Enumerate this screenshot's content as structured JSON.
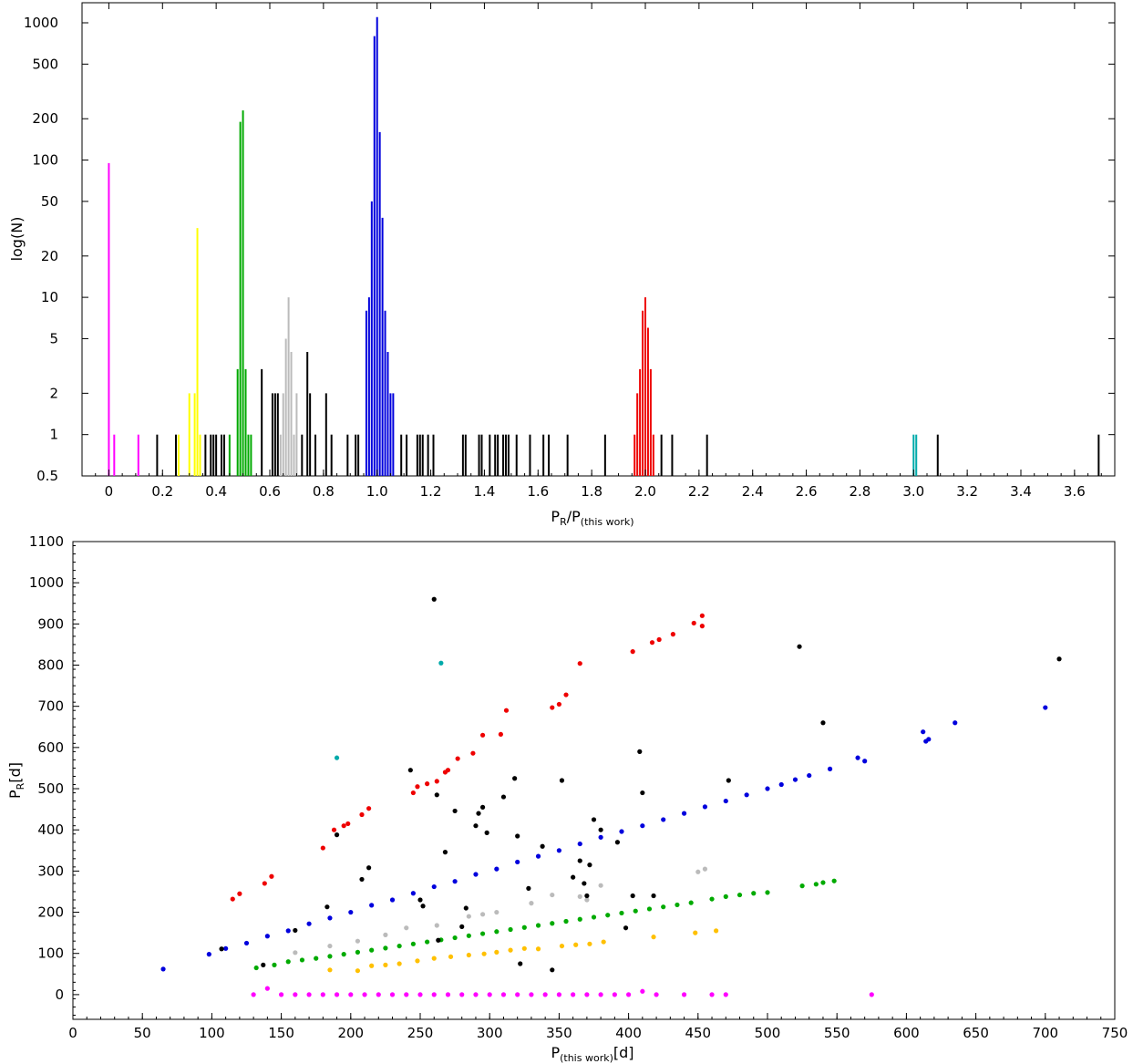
{
  "chart_data": [
    {
      "type": "bar",
      "title": "",
      "xlabel": {
        "main": "P",
        "sub1": "R",
        "mid": "/P",
        "sub2": "(this work)"
      },
      "ylabel": "log(N)",
      "xlim": [
        -0.1,
        3.75
      ],
      "ylim": [
        0.5,
        1400
      ],
      "yscale": "log",
      "xticks": [
        "0",
        "0.2",
        "0.4",
        "0.6",
        "0.8",
        "1.0",
        "1.2",
        "1.4",
        "1.6",
        "1.8",
        "2.0",
        "2.2",
        "2.4",
        "2.6",
        "2.8",
        "3.0",
        "3.2",
        "3.4",
        "3.6"
      ],
      "xtick_values": [
        0,
        0.2,
        0.4,
        0.6,
        0.8,
        1.0,
        1.2,
        1.4,
        1.6,
        1.8,
        2.0,
        2.2,
        2.4,
        2.6,
        2.8,
        3.0,
        3.2,
        3.4,
        3.6
      ],
      "yticks": [
        "0.5",
        "1",
        "2",
        "5",
        "10",
        "20",
        "50",
        "100",
        "200",
        "500",
        "1000"
      ],
      "ytick_values": [
        0.5,
        1,
        2,
        5,
        10,
        20,
        50,
        100,
        200,
        500,
        1000
      ],
      "grid": false,
      "groups": [
        {
          "color": "#ff00ff",
          "bars": [
            [
              0.0,
              95
            ],
            [
              0.02,
              1
            ],
            [
              0.11,
              1
            ]
          ]
        },
        {
          "color": "#000000",
          "bars": [
            [
              0.18,
              1
            ],
            [
              0.25,
              1
            ],
            [
              0.36,
              1
            ],
            [
              0.38,
              1
            ],
            [
              0.39,
              1
            ],
            [
              0.4,
              1
            ],
            [
              0.42,
              1
            ],
            [
              0.43,
              1
            ],
            [
              0.57,
              3
            ],
            [
              0.61,
              2
            ],
            [
              0.62,
              2
            ],
            [
              0.63,
              2
            ],
            [
              0.72,
              1
            ],
            [
              0.74,
              4
            ],
            [
              0.75,
              2
            ],
            [
              0.77,
              1
            ],
            [
              0.81,
              2
            ],
            [
              0.83,
              1
            ],
            [
              0.89,
              1
            ],
            [
              0.92,
              1
            ],
            [
              0.93,
              1
            ],
            [
              1.09,
              1
            ],
            [
              1.11,
              1
            ],
            [
              1.15,
              1
            ],
            [
              1.16,
              1
            ],
            [
              1.17,
              1
            ],
            [
              1.19,
              1
            ],
            [
              1.21,
              1
            ],
            [
              1.32,
              1
            ],
            [
              1.33,
              1
            ],
            [
              1.38,
              1
            ],
            [
              1.39,
              1
            ],
            [
              1.42,
              1
            ],
            [
              1.44,
              1
            ],
            [
              1.45,
              1
            ],
            [
              1.47,
              1
            ],
            [
              1.48,
              1
            ],
            [
              1.49,
              1
            ],
            [
              1.52,
              1
            ],
            [
              1.57,
              1
            ],
            [
              1.62,
              1
            ],
            [
              1.64,
              1
            ],
            [
              1.71,
              1
            ],
            [
              1.85,
              1
            ],
            [
              2.06,
              1
            ],
            [
              2.1,
              1
            ],
            [
              2.23,
              1
            ],
            [
              3.09,
              1
            ],
            [
              3.69,
              1
            ]
          ]
        },
        {
          "color": "#ffff00",
          "bars": [
            [
              0.26,
              1
            ],
            [
              0.3,
              2
            ],
            [
              0.32,
              2
            ],
            [
              0.33,
              32
            ],
            [
              0.34,
              1
            ]
          ]
        },
        {
          "color": "#00aa00",
          "bars": [
            [
              0.45,
              1
            ],
            [
              0.48,
              3
            ],
            [
              0.49,
              190
            ],
            [
              0.5,
              230
            ],
            [
              0.51,
              3
            ],
            [
              0.52,
              1
            ],
            [
              0.53,
              1
            ]
          ]
        },
        {
          "color": "#bbbbbb",
          "bars": [
            [
              0.64,
              1
            ],
            [
              0.65,
              2
            ],
            [
              0.66,
              5
            ],
            [
              0.67,
              10
            ],
            [
              0.68,
              4
            ],
            [
              0.69,
              1
            ],
            [
              0.7,
              2
            ]
          ]
        },
        {
          "color": "#0000dd",
          "bars": [
            [
              0.96,
              8
            ],
            [
              0.97,
              10
            ],
            [
              0.98,
              50
            ],
            [
              0.99,
              800
            ],
            [
              1.0,
              1100
            ],
            [
              1.01,
              160
            ],
            [
              1.02,
              38
            ],
            [
              1.03,
              8
            ],
            [
              1.04,
              4
            ],
            [
              1.05,
              2
            ],
            [
              1.06,
              2
            ]
          ]
        },
        {
          "color": "#ee0000",
          "bars": [
            [
              1.96,
              1
            ],
            [
              1.97,
              2
            ],
            [
              1.98,
              3
            ],
            [
              1.99,
              8
            ],
            [
              2.0,
              10
            ],
            [
              2.01,
              6
            ],
            [
              2.02,
              3
            ],
            [
              2.03,
              1
            ]
          ]
        },
        {
          "color": "#00aaaa",
          "bars": [
            [
              3.0,
              1
            ],
            [
              3.01,
              1
            ]
          ]
        }
      ]
    },
    {
      "type": "scatter",
      "title": "",
      "xlabel": {
        "main": "P",
        "sub": "(this work)",
        "after": "[d]"
      },
      "ylabel": {
        "main": "P",
        "sub": "R",
        "after": "[d]"
      },
      "xlim": [
        0,
        750
      ],
      "ylim": [
        -60,
        1100
      ],
      "xticks": [
        "0",
        "50",
        "100",
        "150",
        "200",
        "250",
        "300",
        "350",
        "400",
        "450",
        "500",
        "550",
        "600",
        "650",
        "700",
        "750"
      ],
      "xtick_values": [
        0,
        50,
        100,
        150,
        200,
        250,
        300,
        350,
        400,
        450,
        500,
        550,
        600,
        650,
        700,
        750
      ],
      "yticks": [
        "0",
        "100",
        "200",
        "300",
        "400",
        "500",
        "600",
        "700",
        "800",
        "900",
        "1000",
        "1100"
      ],
      "ytick_values": [
        0,
        100,
        200,
        300,
        400,
        500,
        600,
        700,
        800,
        900,
        1000,
        1100
      ],
      "grid": false,
      "series": [
        {
          "color": "#0000dd",
          "x": [
            65,
            98,
            110,
            125,
            140,
            155,
            170,
            185,
            200,
            215,
            230,
            245,
            260,
            275,
            290,
            305,
            320,
            335,
            350,
            365,
            380,
            395,
            410,
            425,
            440,
            455,
            470,
            485,
            500,
            510,
            520,
            530,
            545,
            565,
            570,
            612,
            614,
            616,
            635,
            700
          ],
          "y": [
            62,
            98,
            112,
            125,
            142,
            155,
            172,
            186,
            200,
            217,
            230,
            246,
            262,
            275,
            292,
            305,
            322,
            336,
            350,
            366,
            382,
            396,
            410,
            425,
            440,
            456,
            470,
            485,
            500,
            510,
            522,
            532,
            548,
            575,
            567,
            638,
            615,
            620,
            660,
            697
          ]
        },
        {
          "color": "#00aa00",
          "x": [
            132,
            145,
            155,
            165,
            175,
            185,
            195,
            205,
            215,
            225,
            235,
            245,
            255,
            265,
            275,
            285,
            295,
            305,
            315,
            325,
            335,
            345,
            355,
            365,
            375,
            385,
            395,
            405,
            415,
            425,
            435,
            445,
            460,
            470,
            480,
            490,
            500,
            525,
            535,
            540,
            548
          ],
          "y": [
            65,
            72,
            80,
            84,
            88,
            93,
            98,
            103,
            108,
            113,
            118,
            123,
            128,
            133,
            138,
            143,
            148,
            153,
            158,
            163,
            168,
            173,
            178,
            183,
            188,
            193,
            198,
            203,
            208,
            213,
            218,
            223,
            232,
            238,
            242,
            246,
            248,
            264,
            268,
            272,
            276
          ]
        },
        {
          "color": "#ffc000",
          "x": [
            185,
            205,
            215,
            225,
            235,
            248,
            260,
            272,
            285,
            296,
            305,
            315,
            325,
            335,
            352,
            362,
            372,
            382,
            418,
            448,
            463
          ],
          "y": [
            60,
            58,
            70,
            72,
            75,
            82,
            88,
            92,
            96,
            99,
            103,
            108,
            112,
            111,
            118,
            121,
            123,
            128,
            140,
            150,
            155
          ]
        },
        {
          "color": "#bbbbbb",
          "x": [
            160,
            185,
            205,
            225,
            240,
            262,
            285,
            295,
            305,
            330,
            345,
            365,
            370,
            380,
            450,
            455
          ],
          "y": [
            102,
            118,
            130,
            145,
            162,
            168,
            190,
            195,
            200,
            222,
            242,
            238,
            230,
            265,
            298,
            305
          ]
        },
        {
          "color": "#ee0000",
          "x": [
            115,
            120,
            138,
            143,
            180,
            188,
            195,
            198,
            208,
            213,
            245,
            248,
            255,
            262,
            268,
            270,
            277,
            288,
            295,
            308,
            312,
            345,
            350,
            355,
            365,
            403,
            417,
            422,
            432,
            447,
            453,
            453
          ],
          "y": [
            232,
            245,
            270,
            287,
            356,
            400,
            410,
            415,
            437,
            452,
            490,
            505,
            512,
            518,
            540,
            545,
            573,
            586,
            630,
            632,
            690,
            697,
            705,
            728,
            804,
            833,
            855,
            862,
            875,
            902,
            895,
            920
          ]
        },
        {
          "color": "#ff00ff",
          "x": [
            130,
            140,
            150,
            160,
            170,
            180,
            190,
            200,
            210,
            220,
            230,
            240,
            250,
            260,
            270,
            280,
            290,
            300,
            310,
            320,
            330,
            340,
            350,
            360,
            370,
            380,
            390,
            400,
            410,
            420,
            440,
            460,
            470,
            575
          ],
          "y": [
            0,
            15,
            0,
            0,
            0,
            0,
            0,
            0,
            0,
            0,
            0,
            0,
            0,
            0,
            0,
            0,
            0,
            0,
            0,
            0,
            0,
            0,
            0,
            0,
            0,
            0,
            0,
            0,
            8,
            0,
            0,
            0,
            0,
            0
          ]
        },
        {
          "color": "#00aaaa",
          "x": [
            190,
            265
          ],
          "y": [
            575,
            805
          ]
        },
        {
          "color": "#000000",
          "x": [
            107,
            137,
            160,
            183,
            190,
            208,
            213,
            243,
            250,
            252,
            260,
            262,
            263,
            268,
            275,
            280,
            283,
            290,
            292,
            295,
            298,
            310,
            318,
            320,
            322,
            328,
            338,
            345,
            352,
            360,
            365,
            368,
            370,
            372,
            375,
            380,
            392,
            398,
            403,
            408,
            410,
            418,
            472,
            523,
            540,
            710
          ],
          "y": [
            111,
            72,
            156,
            213,
            388,
            280,
            308,
            545,
            230,
            215,
            960,
            485,
            132,
            346,
            446,
            165,
            210,
            410,
            440,
            455,
            393,
            480,
            525,
            385,
            75,
            258,
            360,
            60,
            520,
            285,
            325,
            270,
            240,
            315,
            425,
            400,
            370,
            162,
            240,
            590,
            490,
            240,
            520,
            845,
            660,
            815
          ]
        }
      ]
    }
  ]
}
